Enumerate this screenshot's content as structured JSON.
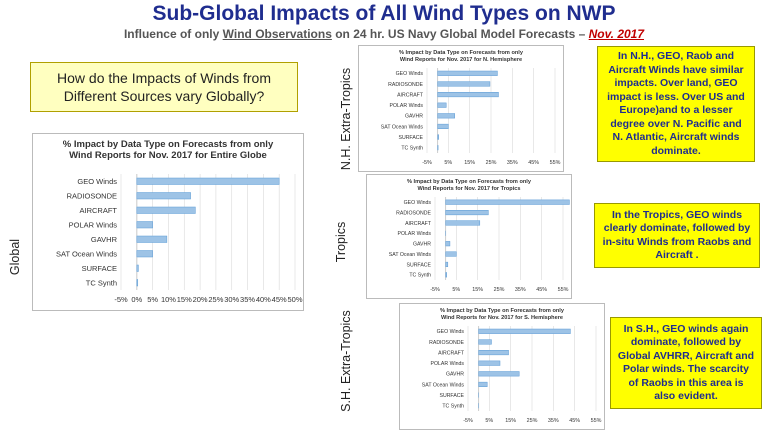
{
  "header": {
    "title": "Sub-Global Impacts of All Wind Types on NWP",
    "subtitle_part1": "Influence of only ",
    "subtitle_wind": "Wind Observations",
    "subtitle_part2": " on 24 hr. US Navy Global Model Forecasts – ",
    "subtitle_date": "Nov. 2017"
  },
  "question": "How do the Impacts of Winds from Different Sources vary Globally?",
  "row_labels": {
    "global": "Global",
    "nh": "N.H. Extra-Tropics",
    "tropics": "Tropics",
    "sh": "S.H. Extra-Tropics"
  },
  "notes": {
    "nh": "In N.H., GEO, Raob and Aircraft Winds have similar impacts. Over land, GEO impact is less. Over US and Europe)and to a lesser degree over N. Pacific and N. Atlantic, Aircraft winds dominate.",
    "tropics": "In the Tropics, GEO winds clearly dominate, followed by in-situ Winds from Raobs and Aircraft .",
    "sh": "In S.H., GEO winds again dominate, followed by Global AVHRR, Aircraft and Polar winds. The scarcity of Raobs in this area is also evident."
  },
  "colors": {
    "bar": "#9dc3e6",
    "bar_edge": "#5b9bd5",
    "title_blue": "#1f2d8f",
    "note_yellow": "#ffff00"
  },
  "chart_data": [
    {
      "id": "global",
      "type": "bar",
      "orientation": "horizontal",
      "title": "% Impact by Data Type on Forecasts from only Wind Reports for Nov. 2017 for Entire Globe",
      "categories": [
        "GEO Winds",
        "RADIOSONDE",
        "AIRCRAFT",
        "POLAR Winds",
        "GAVHR",
        "SAT Ocean Winds",
        "SURFACE",
        "TC Synth"
      ],
      "values": [
        45,
        17,
        18.5,
        5,
        9.5,
        5,
        0.5,
        0.3
      ],
      "xlim": [
        -5,
        50
      ],
      "xticks": [
        -5,
        0,
        5,
        10,
        15,
        20,
        25,
        30,
        35,
        40,
        45,
        50
      ],
      "tick_suffix": "%",
      "grid": "vertical"
    },
    {
      "id": "nh",
      "type": "bar",
      "orientation": "horizontal",
      "title": "% Impact by Data Type on Forecasts from only Wind Reports for Nov. 2017 for N. Hemisphere",
      "categories": [
        "GEO Winds",
        "RADIOSONDE",
        "AIRCRAFT",
        "POLAR Winds",
        "GAVHR",
        "SAT Ocean Winds",
        "SURFACE",
        "TC Synth"
      ],
      "values": [
        28,
        24.5,
        28.5,
        4,
        8,
        5,
        0.5,
        0.2
      ],
      "xlim": [
        -5,
        55
      ],
      "xticks": [
        -5,
        5,
        15,
        25,
        35,
        45,
        55
      ],
      "tick_suffix": "%",
      "grid": "vertical"
    },
    {
      "id": "tropics",
      "type": "bar",
      "orientation": "horizontal",
      "title": "% Impact by Data Type on Forecasts from only Wind Reports for Nov. 2017 for Tropics",
      "categories": [
        "GEO Winds",
        "RADIOSONDE",
        "AIRCRAFT",
        "POLAR Winds",
        "GAVHR",
        "SAT Ocean Winds",
        "SURFACE",
        "TC Synth"
      ],
      "values": [
        58,
        20,
        16,
        0,
        2,
        5,
        1,
        0.5
      ],
      "xlim": [
        -5,
        55
      ],
      "xticks": [
        -5,
        5,
        15,
        25,
        35,
        45,
        55
      ],
      "tick_suffix": "%",
      "grid": "vertical"
    },
    {
      "id": "sh",
      "type": "bar",
      "orientation": "horizontal",
      "title": "% Impact by Data Type on Forecasts from only Wind Reports for Nov. 2017 for S. Hemisphere",
      "categories": [
        "GEO Winds",
        "RADIOSONDE",
        "AIRCRAFT",
        "POLAR Winds",
        "GAVHR",
        "SAT Ocean Winds",
        "SURFACE",
        "TC Synth"
      ],
      "values": [
        43,
        6,
        14,
        10,
        19,
        4,
        0,
        0
      ],
      "xlim": [
        -5,
        55
      ],
      "xticks": [
        -5,
        5,
        15,
        25,
        35,
        45,
        55
      ],
      "tick_suffix": "%",
      "grid": "vertical"
    }
  ]
}
